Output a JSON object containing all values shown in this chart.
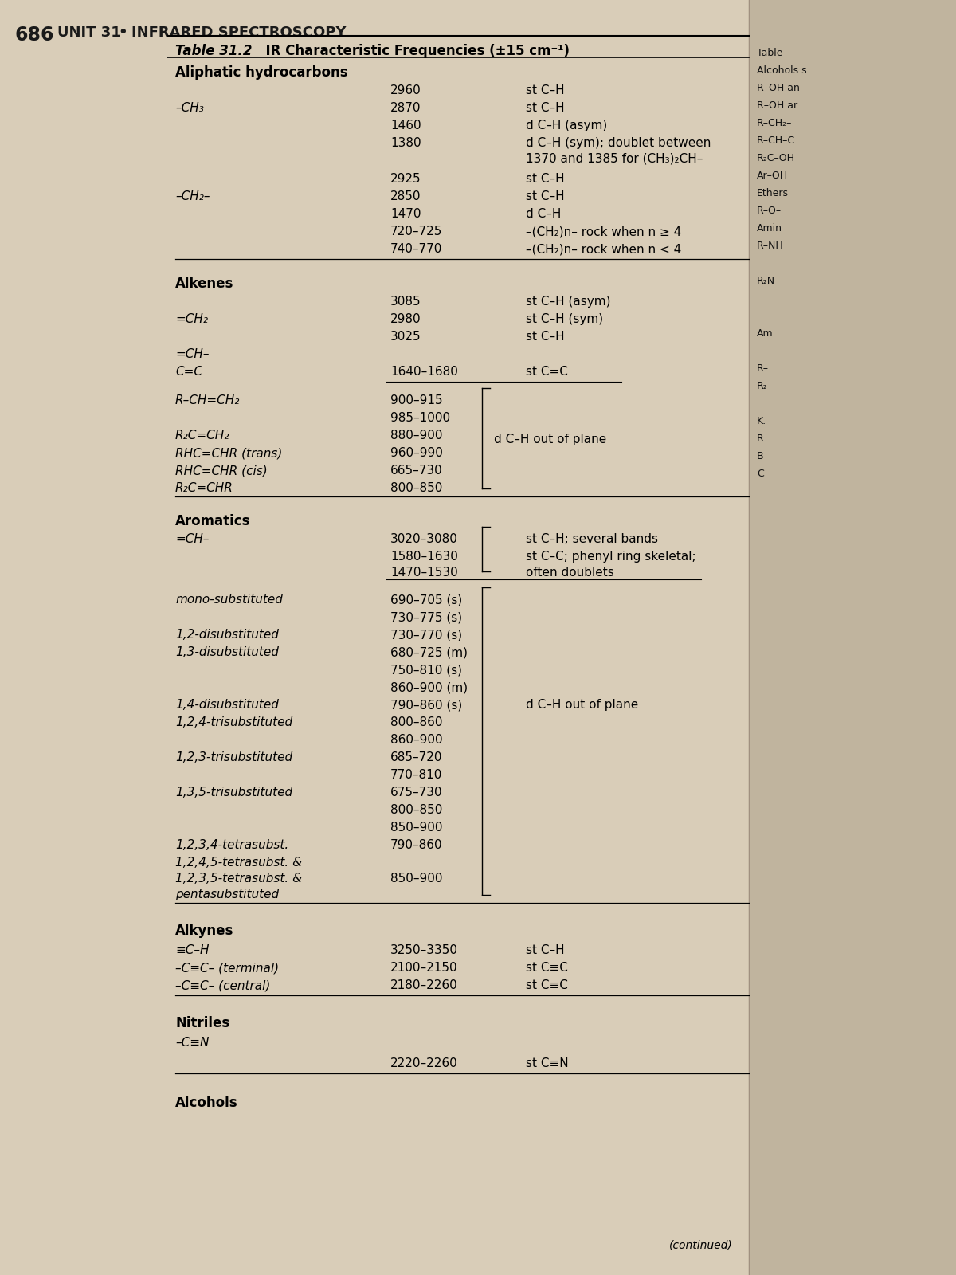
{
  "page_number": "686",
  "header_unit": "UNIT 31",
  "header_bullet": "•",
  "header_title": "INFRARED SPECTROSCOPY",
  "table_title_italic": "Table 31.2",
  "table_title_rest": "  IR Characteristic Frequencies (±15 cm⁻¹)",
  "bg_color": "#d9cdb8",
  "right_bg_color": "#c8bda8",
  "continued_text": "(continued)",
  "right_col_items": [
    "Table",
    "Alcohols s",
    "R–OH an",
    "R–OH ar",
    "R–CH₂–",
    "R–CH–C",
    "R₂C–OH",
    "Ar–OH",
    "Ethers",
    "R–O–",
    "Amin",
    "R–NH",
    "",
    "R₂N",
    "",
    "",
    "Am",
    "",
    "R–",
    "R₂",
    "",
    "K.",
    "R",
    "B",
    "C"
  ]
}
